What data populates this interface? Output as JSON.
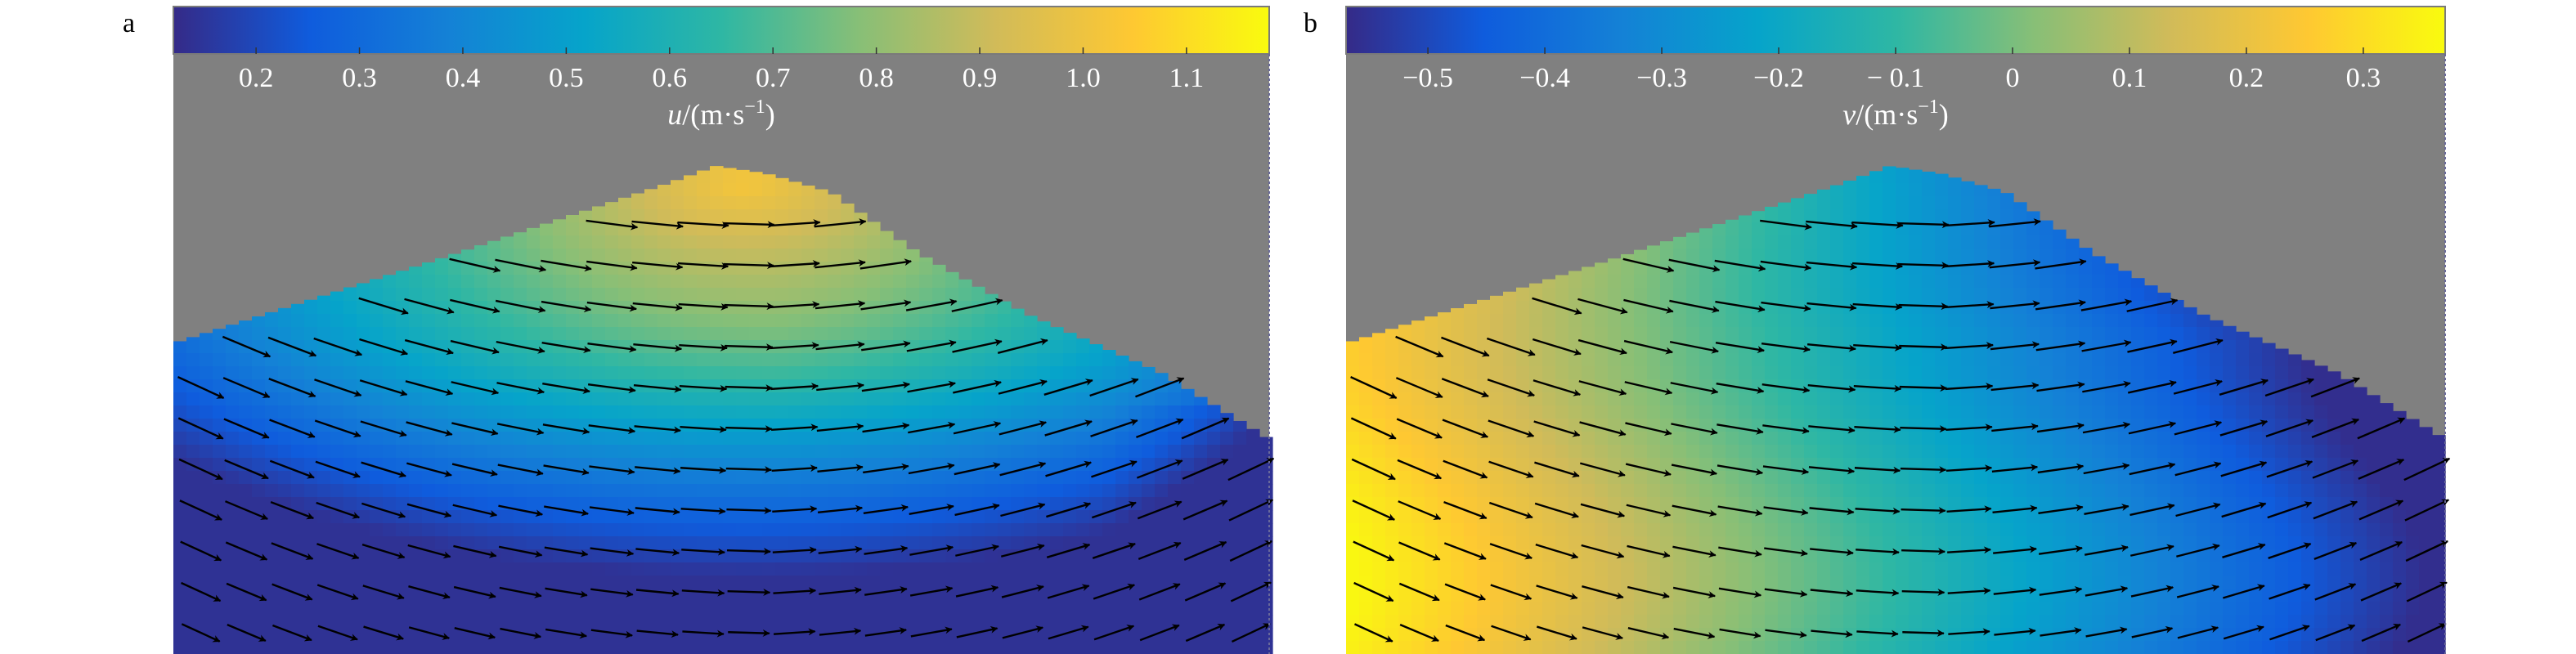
{
  "panels": [
    {
      "letter": "a",
      "colorbar": {
        "var": "u",
        "unit": "/(m·s",
        "exp": "−1",
        "unit_close": ")",
        "ticks": [
          "0.2",
          "0.3",
          "0.4",
          "0.5",
          "0.6",
          "0.7",
          "0.8",
          "0.9",
          "1.0",
          "1.1"
        ],
        "range": [
          0.12,
          1.18
        ]
      }
    },
    {
      "letter": "b",
      "colorbar": {
        "var": "v",
        "unit": "/(m·s",
        "exp": "−1",
        "unit_close": ")",
        "ticks": [
          "−0.5",
          "−0.4",
          "−0.3",
          "−0.2",
          "− 0.1",
          "0",
          "0.1",
          "0.2",
          "0.3"
        ],
        "range": [
          -0.57,
          0.37
        ]
      }
    }
  ],
  "chart_data": [
    {
      "type": "heatmap",
      "title": "",
      "field": "u",
      "colorbar_label": "u/(m·s−1)",
      "colorbar_ticks": [
        0.2,
        0.3,
        0.4,
        0.5,
        0.6,
        0.7,
        0.8,
        0.9,
        1.0,
        1.1
      ],
      "clim": [
        0.12,
        1.18
      ],
      "colormap": "parula",
      "mask_color": "#808080",
      "overlay": "velocity vectors (quiver)",
      "description_values": {
        "peak_near_crest": 1.0,
        "left_edge": 0.4,
        "right_bottom": 0.25
      }
    },
    {
      "type": "heatmap",
      "title": "",
      "field": "v",
      "colorbar_label": "v/(m·s−1)",
      "colorbar_ticks": [
        -0.5,
        -0.4,
        -0.3,
        -0.2,
        -0.1,
        0,
        0.1,
        0.2,
        0.3
      ],
      "clim": [
        -0.57,
        0.37
      ],
      "colormap": "parula",
      "mask_color": "#808080",
      "overlay": "velocity vectors (quiver)",
      "description_values": {
        "left_edge": 0.35,
        "center": -0.05,
        "upper_right": -0.5
      }
    }
  ],
  "colors": {
    "parula": [
      "#352a87",
      "#0f5cdd",
      "#1481d6",
      "#06a4ca",
      "#2eb7a4",
      "#87bf77",
      "#d1bb59",
      "#fec832",
      "#f9fb0e"
    ],
    "mask": "#808080",
    "arrow": "#000000"
  }
}
